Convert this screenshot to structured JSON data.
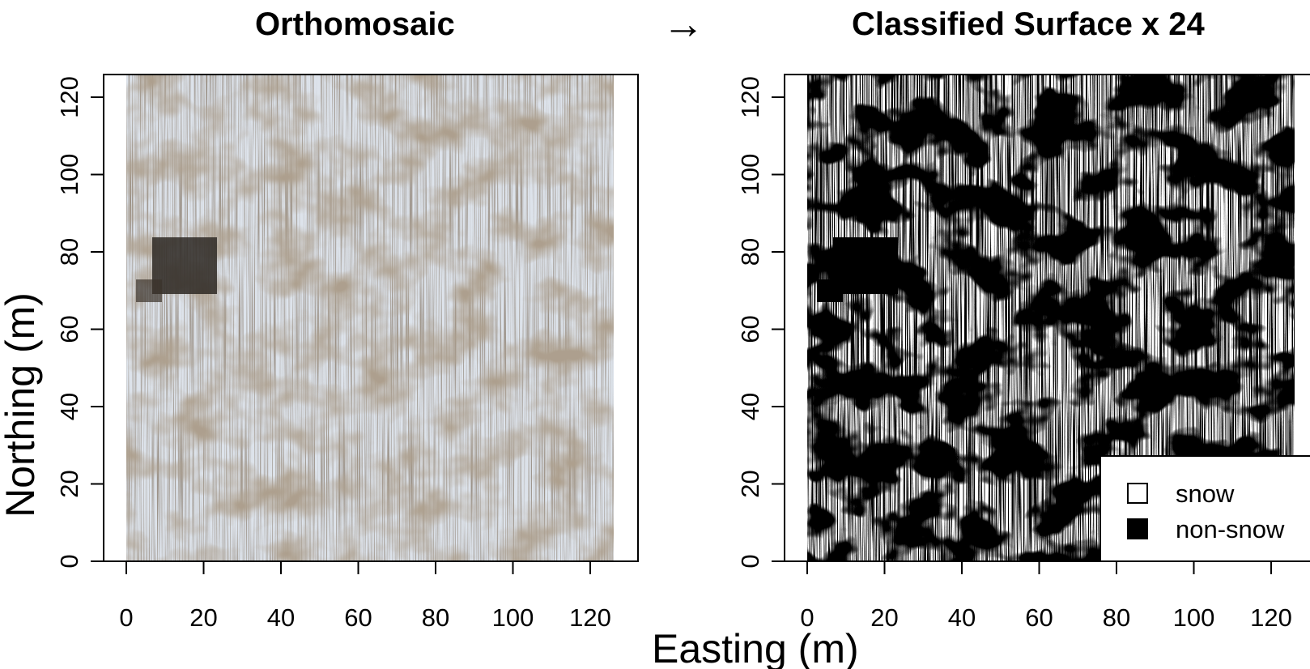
{
  "titles": {
    "left": "Orthomosaic",
    "arrow": "→",
    "right": "Classified Surface x 24"
  },
  "axes": {
    "xlabel": "Easting (m)",
    "ylabel": "Northing (m)",
    "x_ticks": [
      "0",
      "20",
      "40",
      "60",
      "80",
      "100",
      "120"
    ],
    "y_ticks": [
      "0",
      "20",
      "40",
      "60",
      "80",
      "100",
      "120"
    ]
  },
  "legend": {
    "items": [
      {
        "label": "snow",
        "color": "#ffffff"
      },
      {
        "label": "non-snow",
        "color": "#000000"
      }
    ]
  },
  "colors": {
    "snow_ortho": "#dfe4ec",
    "soil_ortho": "#6b5a44",
    "snow_class": "#ffffff",
    "nonsnow_class": "#000000"
  }
}
